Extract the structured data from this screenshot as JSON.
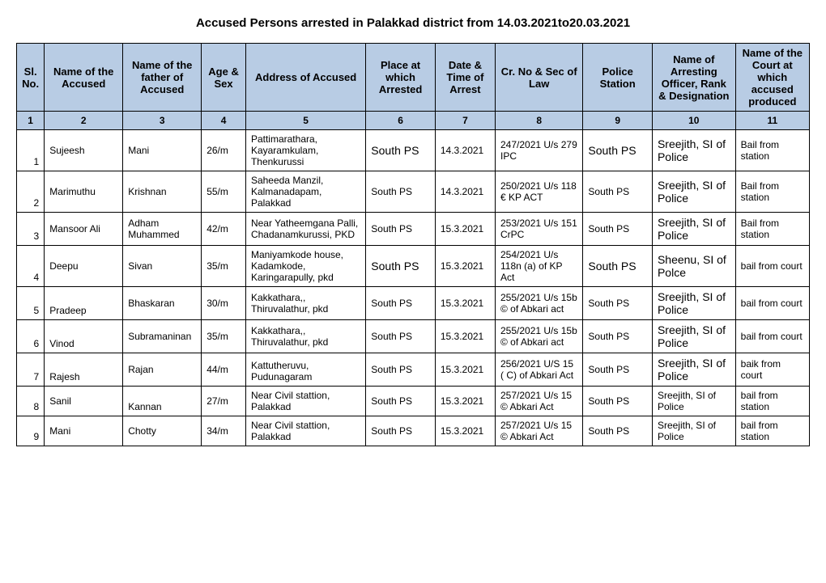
{
  "title": "Accused Persons arrested in    Palakkad   district from   14.03.2021to20.03.2021",
  "headers": {
    "c1": "Sl. No.",
    "c2": "Name of the Accused",
    "c3": "Name of the father of Accused",
    "c4": "Age & Sex",
    "c5": "Address of Accused",
    "c6": "Place at which Arrested",
    "c7": "Date & Time of Arrest",
    "c8": "Cr. No & Sec of Law",
    "c9": "Police Station",
    "c10": "Name of Arresting Officer, Rank & Designation",
    "c11": "Name of the Court at which accused produced"
  },
  "numrow": [
    "1",
    "2",
    "3",
    "4",
    "5",
    "6",
    "7",
    "8",
    "9",
    "10",
    "11"
  ],
  "rows": [
    {
      "sl": "1",
      "name": "Sujeesh",
      "father": "Mani",
      "age": "26/m",
      "addr": "Pattimarathara, Kayaramkulam, Thenkurussi",
      "place": "South PS",
      "date": "14.3.2021",
      "cr": "247/2021  U/s 279 IPC",
      "ps": "South PS",
      "off": "Sreejith, SI of Police",
      "court": "Bail from station",
      "placeBold": true,
      "psBold": true,
      "offBold": true
    },
    {
      "sl": "2",
      "name": "Marimuthu",
      "father": "Krishnan",
      "age": "55/m",
      "addr": "Saheeda Manzil, Kalmanadapam, Palakkad",
      "place": "South PS",
      "date": "14.3.2021",
      "cr": "250/2021 U/s 118 € KP ACT",
      "ps": "South PS",
      "off": "Sreejith, SI of Police",
      "court": "Bail from station",
      "placeBold": false,
      "psBold": false,
      "offBold": true
    },
    {
      "sl": "3",
      "name": "Mansoor Ali",
      "father": "Adham Muhammed",
      "age": "42/m",
      "addr": "Near Yatheemgana Palli, Chadanamkurussi, PKD",
      "place": "South PS",
      "date": "15.3.2021",
      "cr": "253/2021 U/s 151 CrPC",
      "ps": "South PS",
      "off": "Sreejith, SI of Police",
      "court": "Bail from station",
      "placeBold": false,
      "psBold": false,
      "offBold": true
    },
    {
      "sl": "4",
      "name": "Deepu",
      "father": "Sivan",
      "age": "35/m",
      "addr": "Maniyamkode house, Kadamkode, Karingarapully, pkd",
      "place": "South PS",
      "date": "15.3.2021",
      "cr": "254/2021 U/s 118n (a) of KP Act",
      "ps": "South PS",
      "off": "Sheenu, SI of Polce",
      "court": "bail from court",
      "placeBold": true,
      "psBold": true,
      "offBold": true
    },
    {
      "sl": "5",
      "name": "Pradeep",
      "father": "Bhaskaran",
      "age": "30/m",
      "addr": "Kakkathara,, Thiruvalathur, pkd",
      "place": "South PS",
      "date": "15.3.2021",
      "cr": "255/2021 U/s 15b © of Abkari act",
      "ps": "South PS",
      "off": "Sreejith, SI of Police",
      "court": "bail from court",
      "placeBold": false,
      "psBold": false,
      "offBold": true,
      "nameBottom": true
    },
    {
      "sl": "6",
      "name": "Vinod",
      "father": "Subramaninan",
      "age": "35/m",
      "addr": "Kakkathara,, Thiruvalathur, pkd",
      "place": "South PS",
      "date": "15.3.2021",
      "cr": "255/2021 U/s 15b © of Abkari act",
      "ps": "South PS",
      "off": "Sreejith, SI of Police",
      "court": "bail from court",
      "placeBold": false,
      "psBold": false,
      "offBold": true,
      "nameBottom": true
    },
    {
      "sl": "7",
      "name": "Rajesh",
      "father": "Rajan",
      "age": "44/m",
      "addr": "Kattutheruvu, Pudunagaram",
      "place": "South PS",
      "date": "15.3.2021",
      "cr": "256/2021 U/S 15 ( C) of Abkari Act",
      "ps": "South PS",
      "off": "Sreejith, SI of Police",
      "court": "baik from court",
      "placeBold": false,
      "psBold": false,
      "offBold": true,
      "nameBottom": true,
      "addrBottom": true
    },
    {
      "sl": "8",
      "name": "Sanil",
      "father": "Kannan",
      "age": "27/m",
      "addr": "Near Civil stattion, Palakkad",
      "place": "South PS",
      "date": "15.3.2021",
      "cr": "257/2021 U/s 15 © Abkari Act",
      "ps": "South PS",
      "off": "Sreejith, SI of Police",
      "court": "bail from station",
      "placeBold": false,
      "psBold": false,
      "offBold": false,
      "fatherBottom": true
    },
    {
      "sl": "9",
      "name": "Mani",
      "father": "Chotty",
      "age": "34/m",
      "addr": "Near Civil stattion, Palakkad",
      "place": "South PS",
      "date": "15.3.2021",
      "cr": "257/2021 U/s 15 © Abkari Act",
      "ps": "South PS",
      "off": "Sreejith, SI of Police",
      "court": "bail from station",
      "placeBold": false,
      "psBold": false,
      "offBold": false
    }
  ]
}
